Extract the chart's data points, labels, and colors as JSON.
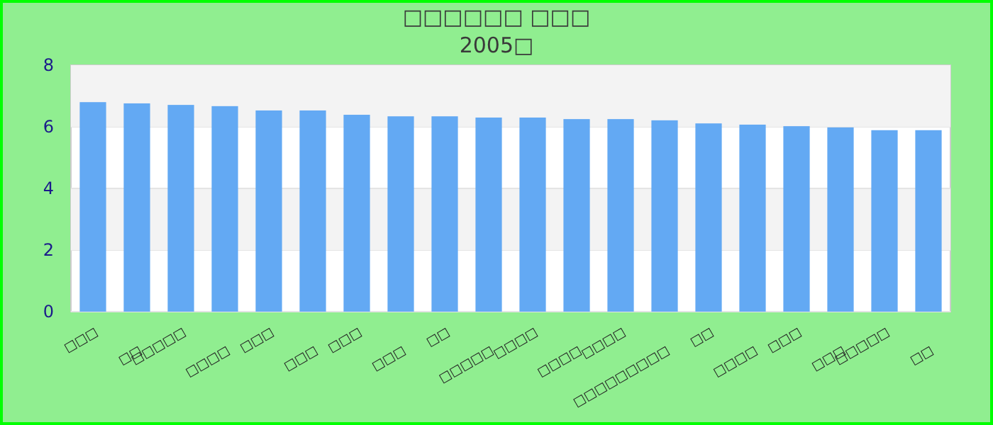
{
  "chart_data": {
    "type": "bar",
    "title": "□□□□□□ □□□",
    "subtitle": "2005□",
    "categories": [
      "□□□",
      "□□",
      "□□□□□",
      "□□□□",
      "□□□",
      "□□□",
      "□□□",
      "□□□",
      "□□",
      "□□□□□",
      "□□□□",
      "□□□□",
      "□□□□",
      "□□□□□□□□□",
      "□□",
      "□□□□",
      "□□□",
      "□□□",
      "□□□□□",
      "□□"
    ],
    "values": [
      6.8,
      6.76,
      6.71,
      6.67,
      6.53,
      6.53,
      6.39,
      6.34,
      6.34,
      6.3,
      6.3,
      6.25,
      6.25,
      6.21,
      6.11,
      6.07,
      6.02,
      5.98,
      5.89,
      5.89
    ],
    "color": "#63a9f3",
    "ylim": [
      0,
      8
    ],
    "yticks": [
      0,
      2,
      4,
      6,
      8
    ],
    "grid": "y"
  }
}
